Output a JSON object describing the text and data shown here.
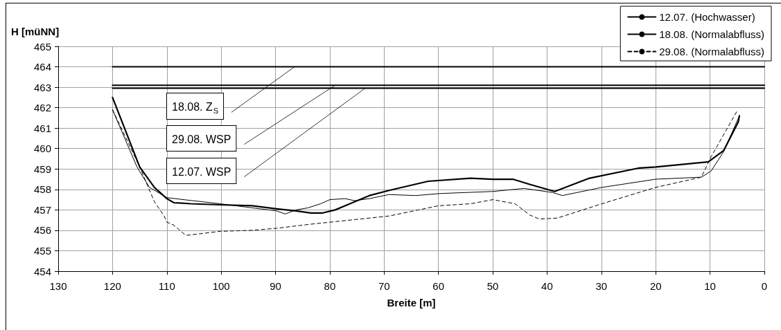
{
  "chart_data": {
    "type": "line",
    "xlabel": "Breite [m]",
    "ylabel": "H [müNN]",
    "xlim": [
      130,
      0
    ],
    "xticks": [
      130,
      120,
      110,
      100,
      90,
      80,
      70,
      60,
      50,
      40,
      30,
      20,
      10,
      0
    ],
    "ylim": [
      454,
      465
    ],
    "yticks": [
      454,
      455,
      456,
      457,
      458,
      459,
      460,
      461,
      462,
      463,
      464,
      465
    ],
    "grid": true,
    "legend": "top right",
    "series": [
      {
        "name": "12.07. (Hochwasser)",
        "color": "#000000",
        "line_style": "solid",
        "x": [
          120,
          115.5,
          113.2,
          110,
          106.9,
          100.2,
          94.3,
          89.8,
          88.2,
          86.2,
          84,
          81.7,
          80,
          77.2,
          75.4,
          72.7,
          69.1,
          64.2,
          59.7,
          50,
          44.2,
          39,
          37.2,
          29.9,
          20,
          11.6,
          9.8,
          7.5,
          4.6
        ],
        "values": [
          461.9,
          459.1,
          458.1,
          457.6,
          457.5,
          457.3,
          457.1,
          456.95,
          456.8,
          457.0,
          457.1,
          457.3,
          457.5,
          457.55,
          457.45,
          457.55,
          457.75,
          457.7,
          457.8,
          457.9,
          458.05,
          457.85,
          457.7,
          458.1,
          458.5,
          458.6,
          458.9,
          459.85,
          461.6
        ]
      },
      {
        "name": "18.08. (Normalabfluss)",
        "color": "#000000",
        "line_style": "solid",
        "x": [
          120,
          115,
          112.3,
          110,
          108.7,
          105.6,
          100.2,
          94.3,
          89.8,
          86.2,
          83.5,
          81.3,
          79,
          75.4,
          72.7,
          69.1,
          61.9,
          54.1,
          50,
          46.3,
          43.2,
          38.6,
          32.2,
          23,
          20,
          10.3,
          7.5,
          4.8,
          4.6
        ],
        "values": [
          462.5,
          459.1,
          458.1,
          457.55,
          457.35,
          457.3,
          457.25,
          457.2,
          457.05,
          456.95,
          456.85,
          456.85,
          457.0,
          457.4,
          457.7,
          457.95,
          458.4,
          458.55,
          458.5,
          458.5,
          458.25,
          457.9,
          458.55,
          459.05,
          459.1,
          459.35,
          459.9,
          461.3,
          461.6
        ]
      },
      {
        "name": "29.08. (Normalabfluss)",
        "color": "#000000",
        "line_style": "dashed",
        "x": [
          120,
          115,
          112.3,
          110.5,
          110,
          108.7,
          106.5,
          100.2,
          94.3,
          89.8,
          83.5,
          76.3,
          69.1,
          60,
          54.1,
          50,
          45.9,
          43.2,
          41.4,
          38.1,
          29.9,
          20,
          11.6,
          9.8,
          5
        ],
        "values": [
          461.9,
          459.1,
          457.4,
          456.7,
          456.4,
          456.25,
          455.75,
          455.95,
          456.0,
          456.1,
          456.3,
          456.5,
          456.7,
          457.2,
          457.3,
          457.5,
          457.3,
          456.75,
          456.55,
          456.6,
          457.3,
          458.1,
          458.6,
          459.6,
          461.85
        ]
      },
      {
        "color": "#000000",
        "line_style": "solid",
        "x": [
          120,
          0
        ],
        "values": [
          464,
          464
        ]
      },
      {
        "color": "#000000",
        "line_style": "solid",
        "x": [
          120,
          0
        ],
        "values": [
          463.1,
          463.1
        ]
      },
      {
        "color": "#000000",
        "line_style": "solid",
        "x": [
          120,
          0
        ],
        "values": [
          462.95,
          462.95
        ]
      }
    ],
    "annotations": [
      {
        "text": "18.08. Z$_{S}$",
        "x": 86.5,
        "y": 464
      },
      {
        "text": "29.08. WSP",
        "x": 79,
        "y": 463.1
      },
      {
        "text": "12.07. WSP",
        "x": 73.5,
        "y": 462.95
      }
    ]
  }
}
